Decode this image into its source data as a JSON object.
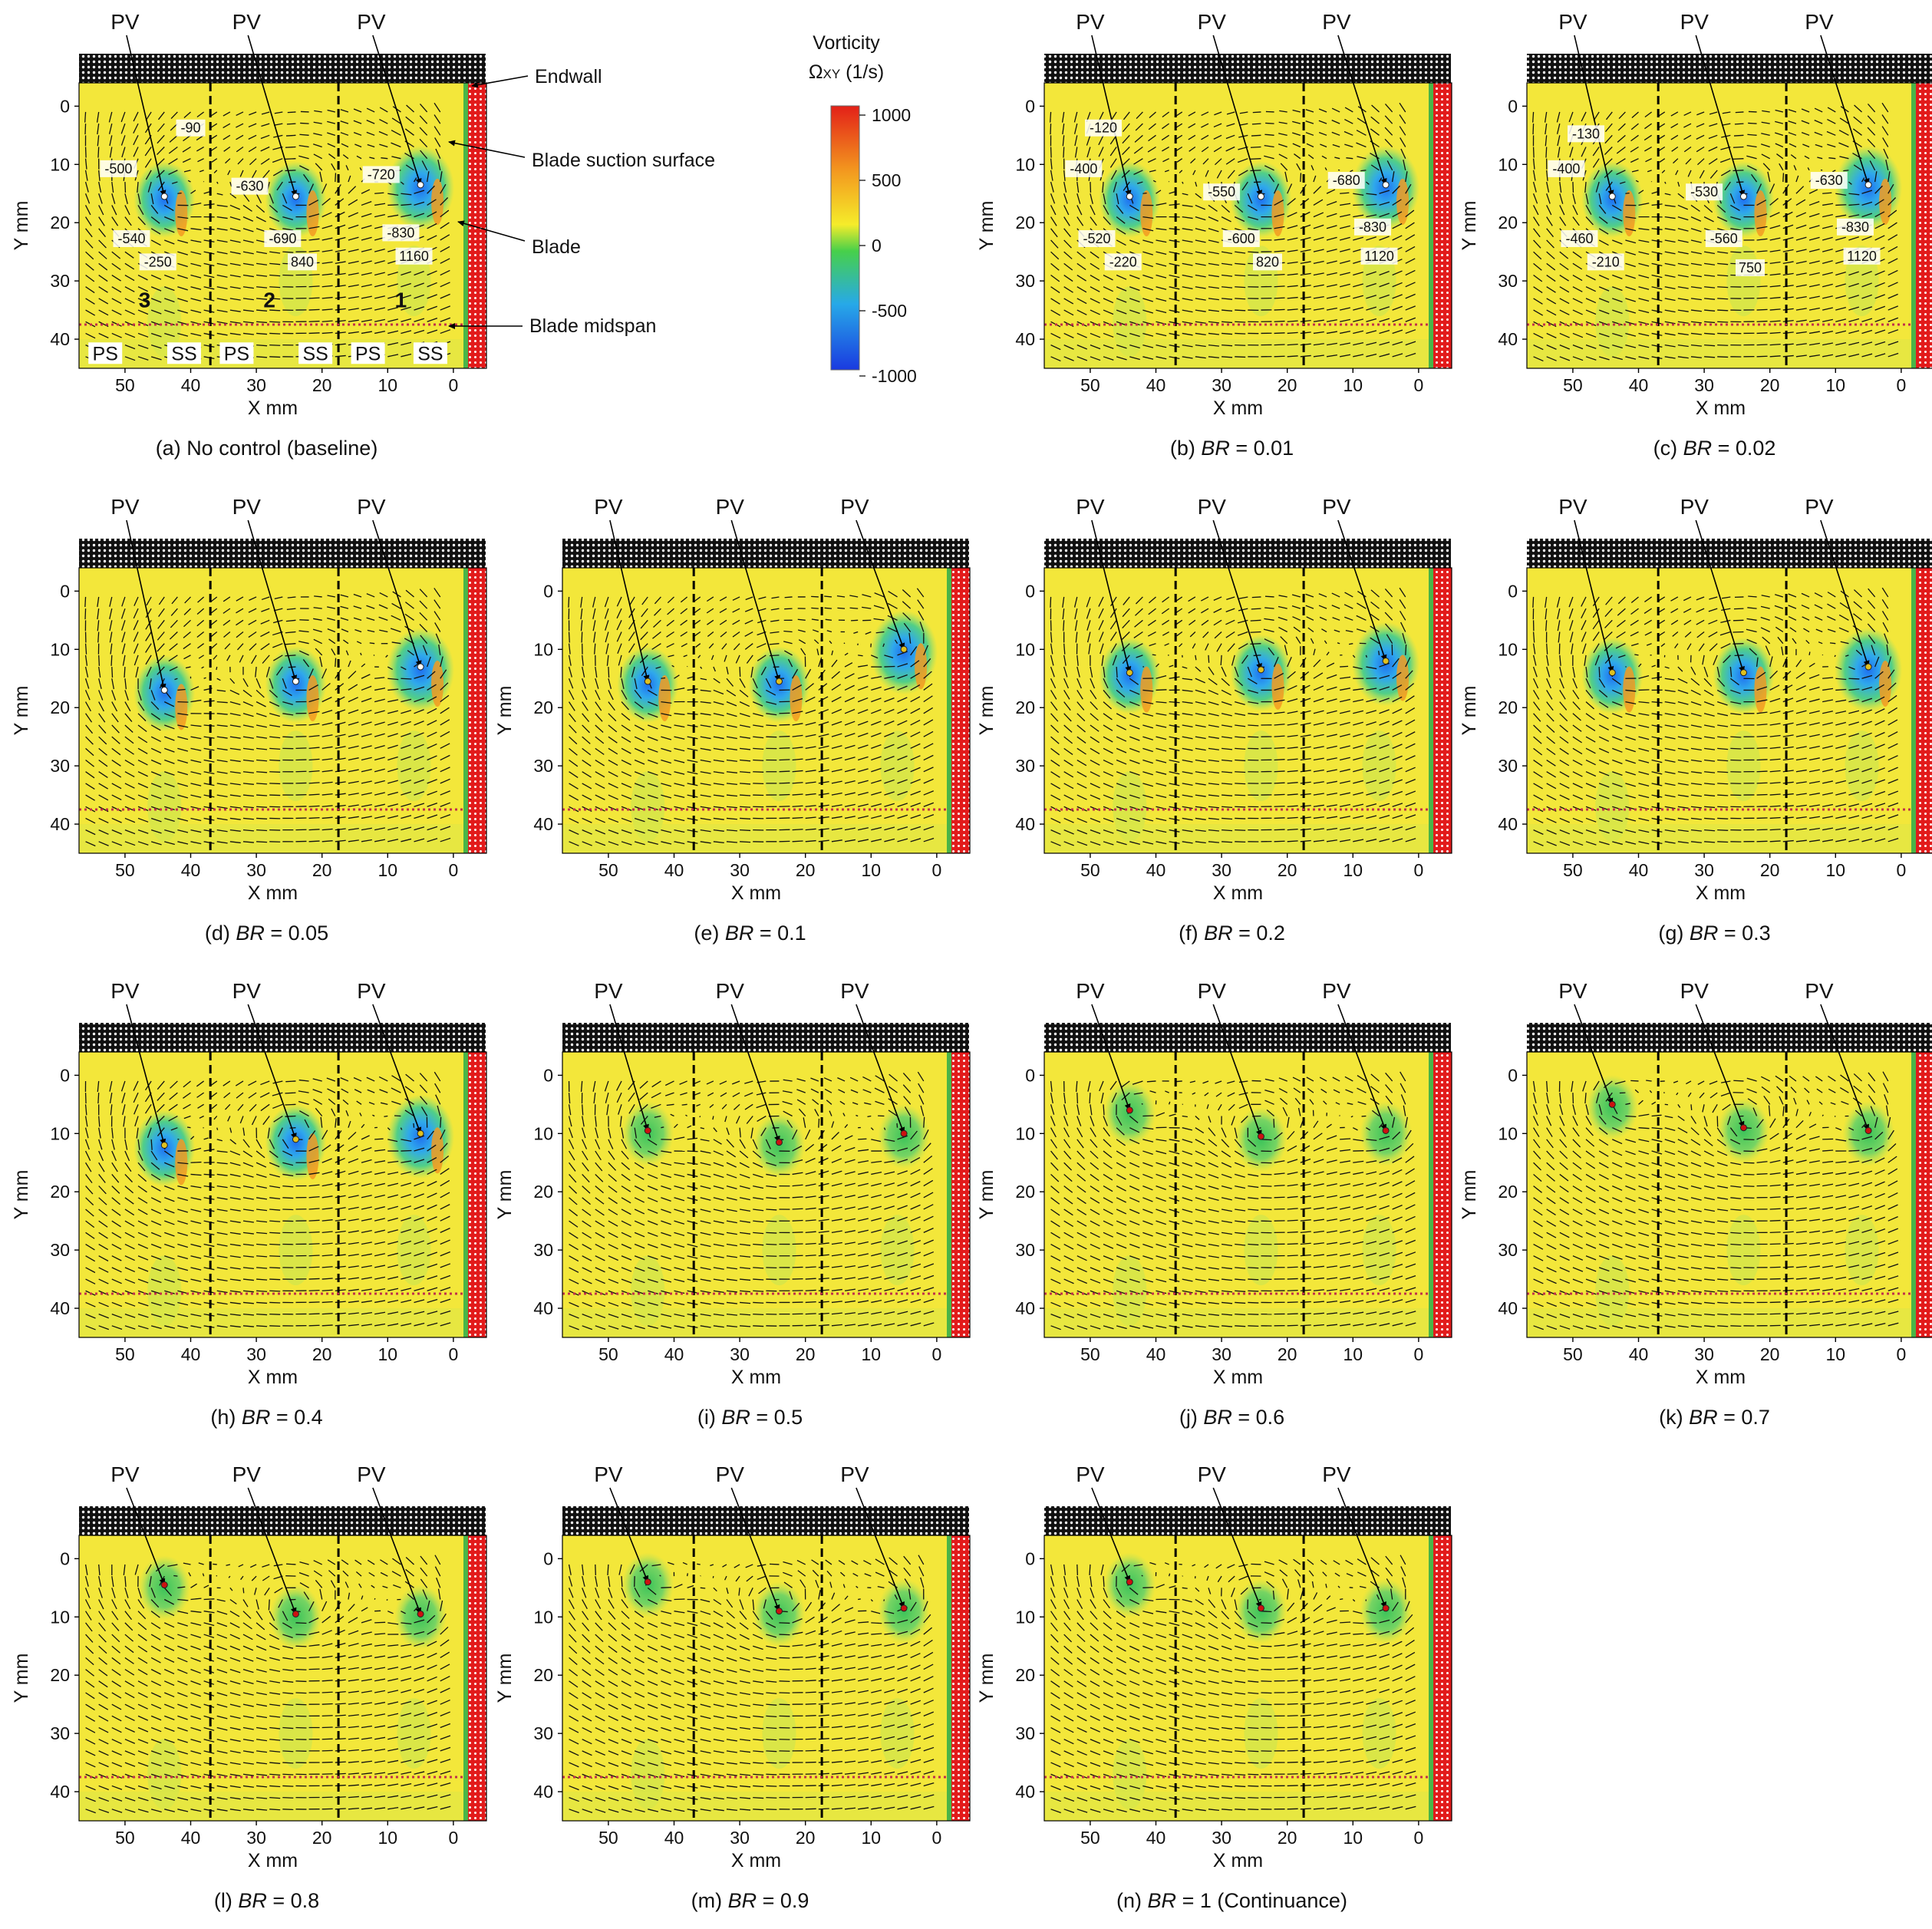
{
  "legend": {
    "title1": "Vorticity",
    "title2": "Ω",
    "title2_sub": "XY",
    "title2_unit": " (1/s)",
    "ticks": [
      "1000",
      "500",
      "0",
      "-500",
      "-1000"
    ],
    "colors": {
      "high": "#e32018",
      "mid": "#f5ec2a",
      "zero": "#47d04a",
      "low": "#27a9e8",
      "min": "#1a3ae0"
    }
  },
  "labels": {
    "endwall": "Endwall",
    "suction": "Blade suction surface",
    "blade": "Blade",
    "midspan": "Blade midspan",
    "pv": "PV"
  },
  "chart_data": {
    "type": "heatmap",
    "xlabel": "X mm",
    "ylabel": "Y mm",
    "xticks": [
      "50",
      "40",
      "30",
      "20",
      "10",
      "0"
    ],
    "yticks": [
      "0",
      "10",
      "20",
      "30",
      "40"
    ],
    "xlim": [
      57,
      -2
    ],
    "ylim": [
      -4,
      45
    ],
    "passage_numbers": [
      "3",
      "2",
      "1"
    ],
    "surface_labels": [
      "PS",
      "SS",
      "PS",
      "SS",
      "PS",
      "SS"
    ],
    "vortex_x": [
      44,
      24,
      5
    ],
    "panels": [
      {
        "caption_pre": "(a) No control (baseline)",
        "br": "",
        "caption_post": "",
        "vy": [
          15.5,
          15.5,
          13.5
        ],
        "vals": [
          {
            "t": "-90",
            "x": 40,
            "y": 4
          },
          {
            "t": "-500",
            "x": 51,
            "y": 11
          },
          {
            "t": "-540",
            "x": 49,
            "y": 23
          },
          {
            "t": "-250",
            "x": 45,
            "y": 27
          },
          {
            "t": "-630",
            "x": 31,
            "y": 14
          },
          {
            "t": "-690",
            "x": 26,
            "y": 23
          },
          {
            "t": "840",
            "x": 23,
            "y": 27
          },
          {
            "t": "-720",
            "x": 11,
            "y": 12
          },
          {
            "t": "-830",
            "x": 8,
            "y": 22
          },
          {
            "t": "1160",
            "x": 6,
            "y": 26
          }
        ]
      },
      {
        "caption_pre": "(b) ",
        "br": "BR",
        "caption_post": " = 0.01",
        "vy": [
          15.5,
          15.5,
          13.5
        ],
        "vals": [
          {
            "t": "-120",
            "x": 48,
            "y": 4
          },
          {
            "t": "-400",
            "x": 51,
            "y": 11
          },
          {
            "t": "-520",
            "x": 49,
            "y": 23
          },
          {
            "t": "-220",
            "x": 45,
            "y": 27
          },
          {
            "t": "-550",
            "x": 30,
            "y": 15
          },
          {
            "t": "-600",
            "x": 27,
            "y": 23
          },
          {
            "t": "820",
            "x": 23,
            "y": 27
          },
          {
            "t": "-680",
            "x": 11,
            "y": 13
          },
          {
            "t": "-830",
            "x": 7,
            "y": 21
          },
          {
            "t": "1120",
            "x": 6,
            "y": 26
          }
        ]
      },
      {
        "caption_pre": "(c) ",
        "br": "BR",
        "caption_post": " = 0.02",
        "vy": [
          15.5,
          15.5,
          13.5
        ],
        "vals": [
          {
            "t": "-130",
            "x": 48,
            "y": 5
          },
          {
            "t": "-400",
            "x": 51,
            "y": 11
          },
          {
            "t": "-460",
            "x": 49,
            "y": 23
          },
          {
            "t": "-210",
            "x": 45,
            "y": 27
          },
          {
            "t": "-530",
            "x": 30,
            "y": 15
          },
          {
            "t": "-560",
            "x": 27,
            "y": 23
          },
          {
            "t": "750",
            "x": 23,
            "y": 28
          },
          {
            "t": "-630",
            "x": 11,
            "y": 13
          },
          {
            "t": "-830",
            "x": 7,
            "y": 21
          },
          {
            "t": "1120",
            "x": 6,
            "y": 26
          }
        ]
      },
      {
        "caption_pre": "(d) ",
        "br": "BR",
        "caption_post": " = 0.05",
        "vy": [
          17,
          15.5,
          13
        ]
      },
      {
        "caption_pre": "(e) ",
        "br": "BR",
        "caption_post": " = 0.1",
        "vy": [
          15.5,
          15.5,
          10
        ]
      },
      {
        "caption_pre": "(f) ",
        "br": "BR",
        "caption_post": " = 0.2",
        "vy": [
          14,
          13.5,
          12
        ]
      },
      {
        "caption_pre": "(g) ",
        "br": "BR",
        "caption_post": " = 0.3",
        "vy": [
          14,
          14,
          13
        ]
      },
      {
        "caption_pre": "(h) ",
        "br": "BR",
        "caption_post": " = 0.4",
        "vy": [
          12,
          11,
          10
        ]
      },
      {
        "caption_pre": "(i) ",
        "br": "BR",
        "caption_post": " = 0.5",
        "vy": [
          9.5,
          11.5,
          10
        ]
      },
      {
        "caption_pre": "(j) ",
        "br": "BR",
        "caption_post": " = 0.6",
        "vy": [
          6,
          10.5,
          9.5
        ]
      },
      {
        "caption_pre": "(k) ",
        "br": "BR",
        "caption_post": " = 0.7",
        "vy": [
          5,
          9,
          9.5
        ]
      },
      {
        "caption_pre": "(l) ",
        "br": "BR",
        "caption_post": " = 0.8",
        "vy": [
          4.5,
          9.5,
          9.5
        ]
      },
      {
        "caption_pre": "(m) ",
        "br": "BR",
        "caption_post": " = 0.9",
        "vy": [
          4,
          9,
          8.5
        ]
      },
      {
        "caption_pre": "(n) ",
        "br": "BR",
        "caption_post": " = 1 (Continuance)",
        "vy": [
          4,
          8.5,
          8.5
        ]
      }
    ]
  }
}
